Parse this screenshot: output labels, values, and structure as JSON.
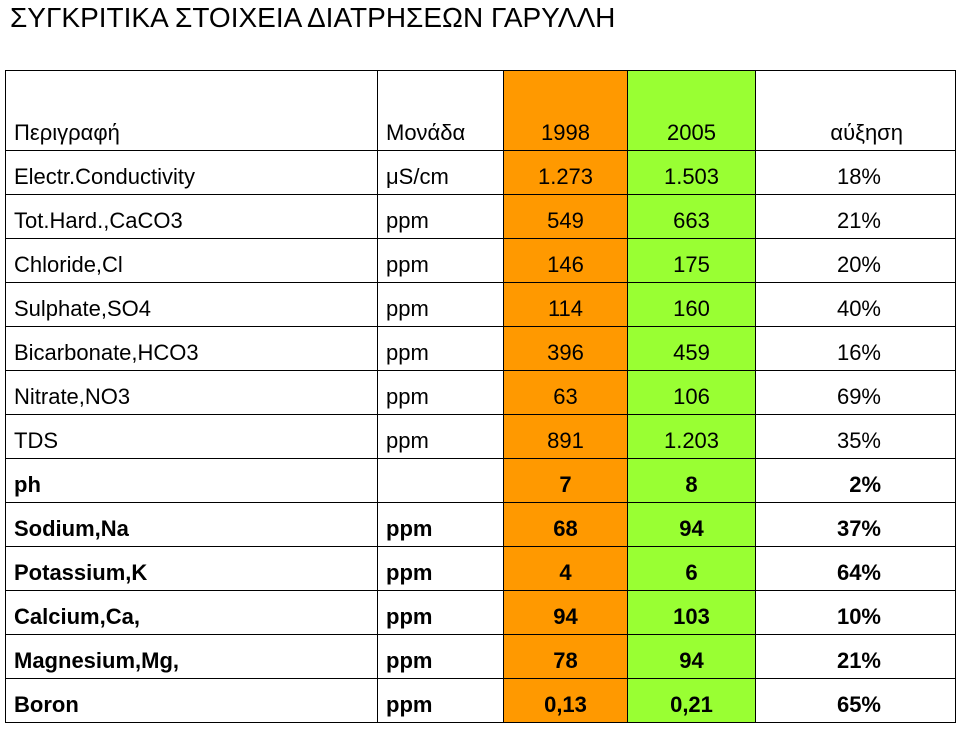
{
  "title": "ΣΥΓΚΡΙΤΙΚΑ ΣΤΟΙΧΕΙΑ ΔΙΑΤΡΗΣΕΩΝ ΓΑΡΥΛΛΗ",
  "colors": {
    "year1_fill": "#ff9900",
    "year2_fill": "#99ff33",
    "grid": "#000000"
  },
  "table": {
    "headers": [
      "Περιγραφή",
      "Μονάδα",
      "1998",
      "2005",
      "αύξηση"
    ],
    "rows": [
      {
        "desc": "Electr.Conductivity",
        "unit": "μS/cm",
        "y1998": "1.273",
        "y2005": "1.503",
        "increase": "18%",
        "bold": false
      },
      {
        "desc": "Tot.Hard.,CaCO3",
        "unit": "ppm",
        "y1998": "549",
        "y2005": "663",
        "increase": "21%",
        "bold": false
      },
      {
        "desc": "Chloride,Cl",
        "unit": "ppm",
        "y1998": "146",
        "y2005": "175",
        "increase": "20%",
        "bold": false
      },
      {
        "desc": "Sulphate,SO4",
        "unit": "ppm",
        "y1998": "114",
        "y2005": "160",
        "increase": "40%",
        "bold": false
      },
      {
        "desc": "Bicarbonate,HCO3",
        "unit": "ppm",
        "y1998": "396",
        "y2005": "459",
        "increase": "16%",
        "bold": false
      },
      {
        "desc": "Nitrate,NO3",
        "unit": "ppm",
        "y1998": "63",
        "y2005": "106",
        "increase": "69%",
        "bold": false
      },
      {
        "desc": "TDS",
        "unit": "ppm",
        "y1998": "891",
        "y2005": "1.203",
        "increase": "35%",
        "bold": false
      },
      {
        "desc": "ph",
        "unit": "",
        "y1998": "7",
        "y2005": "8",
        "increase": "2%",
        "bold": true
      },
      {
        "desc": "Sodium,Na",
        "unit": "ppm",
        "y1998": "68",
        "y2005": "94",
        "increase": "37%",
        "bold": true
      },
      {
        "desc": "Potassium,K",
        "unit": "ppm",
        "y1998": "4",
        "y2005": "6",
        "increase": "64%",
        "bold": true
      },
      {
        "desc": "Calcium,Ca,",
        "unit": "ppm",
        "y1998": "94",
        "y2005": "103",
        "increase": "10%",
        "bold": true
      },
      {
        "desc": "Magnesium,Mg,",
        "unit": "ppm",
        "y1998": "78",
        "y2005": "94",
        "increase": "21%",
        "bold": true
      },
      {
        "desc": "Boron",
        "unit": "ppm",
        "y1998": "0,13",
        "y2005": "0,21",
        "increase": "65%",
        "bold": true
      }
    ]
  }
}
